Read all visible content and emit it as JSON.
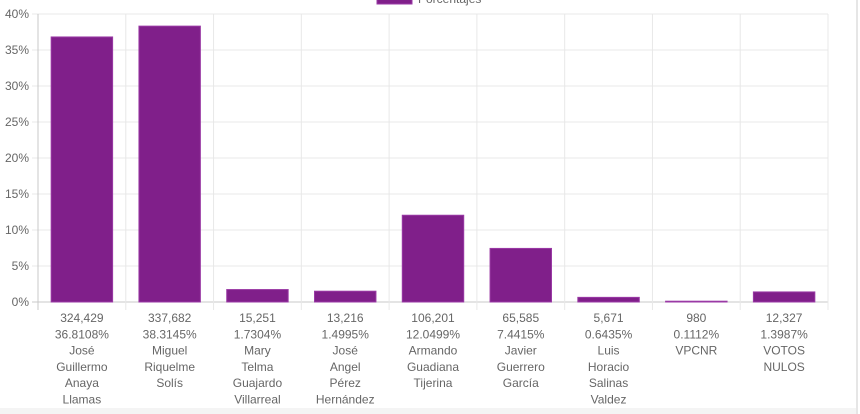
{
  "chart_data": {
    "type": "bar",
    "legend": {
      "label": "Porcentajes",
      "placement": "top"
    },
    "bar_color": "#801f8a",
    "ylim": [
      0,
      40
    ],
    "yticks": [
      "0%",
      "5%",
      "10%",
      "15%",
      "20%",
      "25%",
      "30%",
      "35%",
      "40%"
    ],
    "grid": true,
    "categories": [
      {
        "votes": "324,429",
        "percent": "36.8108%",
        "name": [
          "José",
          "Guillermo",
          "Anaya",
          "Llamas"
        ]
      },
      {
        "votes": "337,682",
        "percent": "38.3145%",
        "name": [
          "Miguel",
          "Riquelme",
          "Solís"
        ]
      },
      {
        "votes": "15,251",
        "percent": "1.7304%",
        "name": [
          "Mary",
          "Telma",
          "Guajardo",
          "Villarreal"
        ]
      },
      {
        "votes": "13,216",
        "percent": "1.4995%",
        "name": [
          "José",
          "Angel",
          "Pérez",
          "Hernández"
        ]
      },
      {
        "votes": "106,201",
        "percent": "12.0499%",
        "name": [
          "Armando",
          "Guadiana",
          "Tijerina"
        ]
      },
      {
        "votes": "65,585",
        "percent": "7.4415%",
        "name": [
          "Javier",
          "Guerrero",
          "García"
        ]
      },
      {
        "votes": "5,671",
        "percent": "0.6435%",
        "name": [
          "Luis",
          "Horacio",
          "Salinas",
          "Valdez"
        ]
      },
      {
        "votes": "980",
        "percent": "0.1112%",
        "name": [
          "VPCNR"
        ]
      },
      {
        "votes": "12,327",
        "percent": "1.3987%",
        "name": [
          "VOTOS",
          "NULOS"
        ]
      }
    ],
    "values": [
      36.8108,
      38.3145,
      1.7304,
      1.4995,
      12.0499,
      7.4415,
      0.6435,
      0.1112,
      1.3987
    ]
  }
}
